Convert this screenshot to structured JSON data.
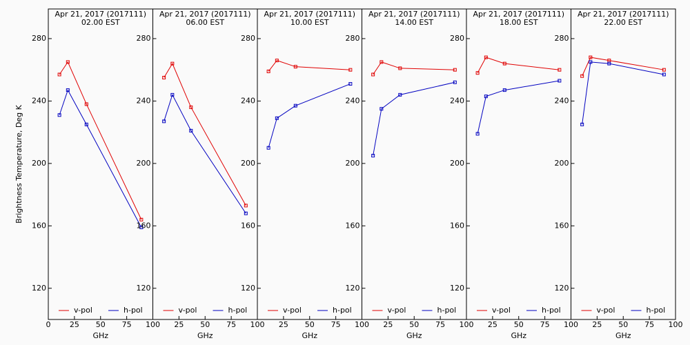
{
  "chart_data": [
    {
      "type": "line",
      "title": "Apr 21, 2017 (2017111)",
      "subtitle": "02.00 EST",
      "xlabel": "GHz",
      "ylabel": "Brightness Temperature, Deg K",
      "x": [
        10.65,
        18.7,
        36.5,
        89
      ],
      "xlim": [
        0,
        100
      ],
      "xticks": [
        0,
        25,
        50,
        75,
        100
      ],
      "ylim": [
        100,
        299
      ],
      "yticks": [
        120,
        160,
        200,
        240,
        280
      ],
      "series": [
        {
          "name": "v-pol",
          "color": "#e00000",
          "values": [
            257,
            265,
            238,
            164
          ]
        },
        {
          "name": "h-pol",
          "color": "#0000c0",
          "values": [
            231,
            247,
            225,
            159
          ]
        }
      ]
    },
    {
      "type": "line",
      "title": "Apr 21, 2017 (2017111)",
      "subtitle": "06.00 EST",
      "xlabel": "GHz",
      "x": [
        10.65,
        18.7,
        36.5,
        89
      ],
      "xlim": [
        0,
        100
      ],
      "xticks": [
        25,
        50,
        75,
        100
      ],
      "ylim": [
        100,
        299
      ],
      "yticks": [
        120,
        160,
        200,
        240,
        280
      ],
      "series": [
        {
          "name": "v-pol",
          "color": "#e00000",
          "values": [
            255,
            264,
            236,
            173
          ]
        },
        {
          "name": "h-pol",
          "color": "#0000c0",
          "values": [
            227,
            244,
            221,
            168
          ]
        }
      ]
    },
    {
      "type": "line",
      "title": "Apr 21, 2017 (2017111)",
      "subtitle": "10.00 EST",
      "xlabel": "GHz",
      "x": [
        10.65,
        18.7,
        36.5,
        89
      ],
      "xlim": [
        0,
        100
      ],
      "xticks": [
        25,
        50,
        75,
        100
      ],
      "ylim": [
        100,
        299
      ],
      "yticks": [
        120,
        160,
        200,
        240,
        280
      ],
      "series": [
        {
          "name": "v-pol",
          "color": "#e00000",
          "values": [
            259,
            266,
            262,
            260
          ]
        },
        {
          "name": "h-pol",
          "color": "#0000c0",
          "values": [
            210,
            229,
            237,
            251
          ]
        }
      ]
    },
    {
      "type": "line",
      "title": "Apr 21, 2017 (2017111)",
      "subtitle": "14.00 EST",
      "xlabel": "GHz",
      "x": [
        10.65,
        18.7,
        36.5,
        89
      ],
      "xlim": [
        0,
        100
      ],
      "xticks": [
        25,
        50,
        75,
        100
      ],
      "ylim": [
        100,
        299
      ],
      "yticks": [
        120,
        160,
        200,
        240,
        280
      ],
      "series": [
        {
          "name": "v-pol",
          "color": "#e00000",
          "values": [
            257,
            265,
            261,
            260
          ]
        },
        {
          "name": "h-pol",
          "color": "#0000c0",
          "values": [
            205,
            235,
            244,
            252
          ]
        }
      ]
    },
    {
      "type": "line",
      "title": "Apr 21, 2017 (2017111)",
      "subtitle": "18.00 EST",
      "xlabel": "GHz",
      "x": [
        10.65,
        18.7,
        36.5,
        89
      ],
      "xlim": [
        0,
        100
      ],
      "xticks": [
        25,
        50,
        75,
        100
      ],
      "ylim": [
        100,
        299
      ],
      "yticks": [
        120,
        160,
        200,
        240,
        280
      ],
      "series": [
        {
          "name": "v-pol",
          "color": "#e00000",
          "values": [
            258,
            268,
            264,
            260
          ]
        },
        {
          "name": "h-pol",
          "color": "#0000c0",
          "values": [
            219,
            243,
            247,
            253
          ]
        }
      ]
    },
    {
      "type": "line",
      "title": "Apr 21, 2017 (2017111)",
      "subtitle": "22.00 EST",
      "xlabel": "GHz",
      "x": [
        10.65,
        18.7,
        36.5,
        89
      ],
      "xlim": [
        0,
        100
      ],
      "xticks": [
        25,
        50,
        75,
        100
      ],
      "ylim": [
        100,
        299
      ],
      "yticks": [
        120,
        160,
        200,
        240,
        280
      ],
      "series": [
        {
          "name": "v-pol",
          "color": "#e00000",
          "values": [
            256,
            268,
            266,
            260
          ]
        },
        {
          "name": "h-pol",
          "color": "#0000c0",
          "values": [
            225,
            265,
            264,
            257
          ]
        }
      ]
    }
  ]
}
